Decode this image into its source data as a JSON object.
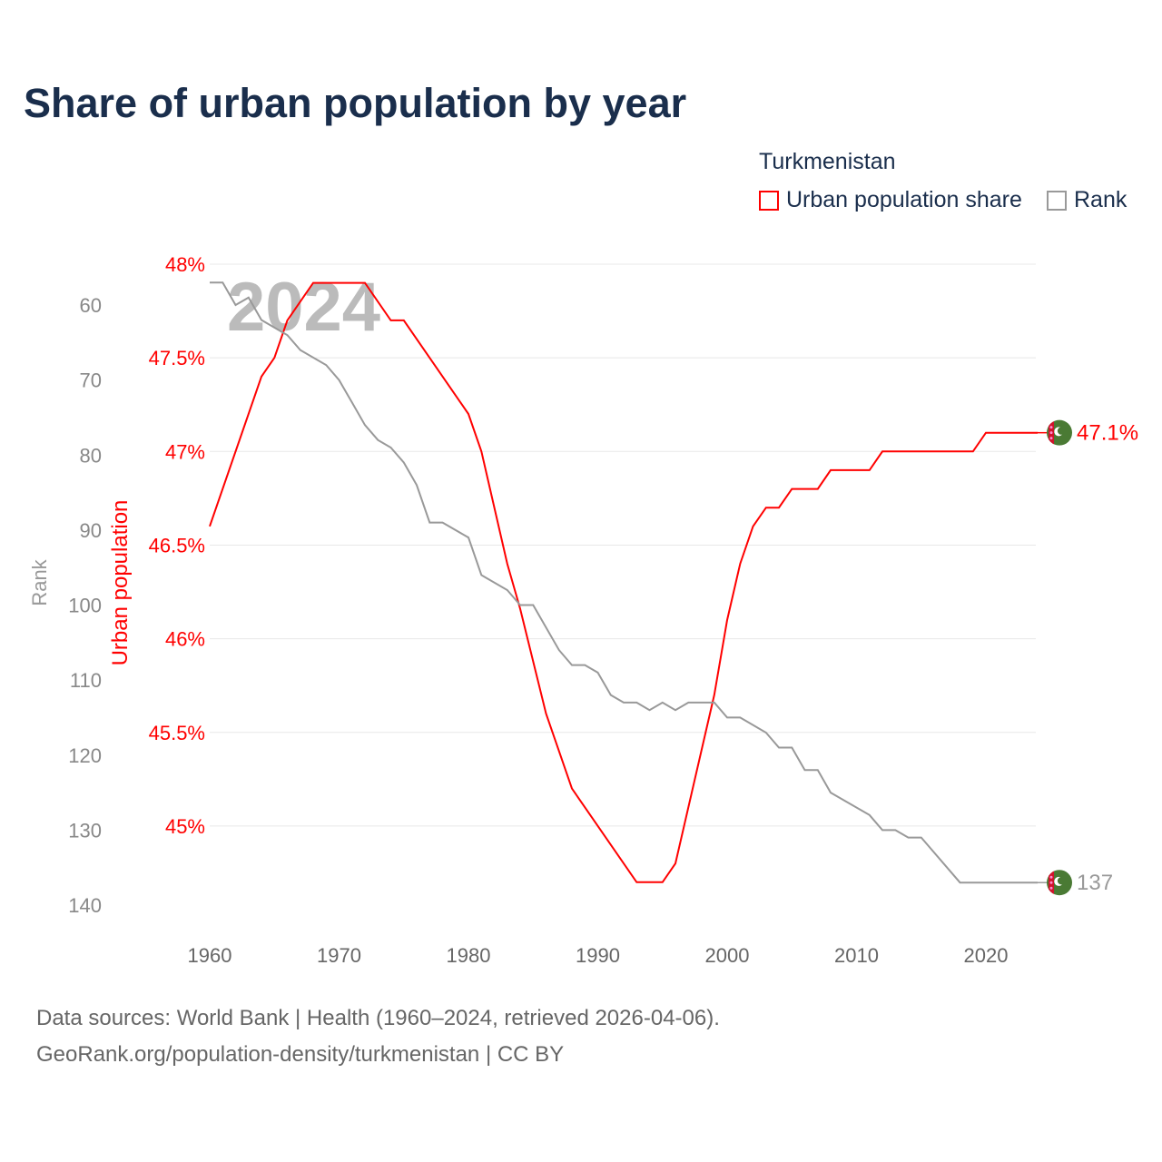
{
  "title": "Share of urban population by year",
  "legend": {
    "country": "Turkmenistan",
    "items": [
      {
        "label": "Urban population share",
        "color": "#ff0000"
      },
      {
        "label": "Rank",
        "color": "#999999"
      }
    ]
  },
  "footer": {
    "line1": "Data sources: World Bank | Health (1960–2024, retrieved 2026-04-06).",
    "line2": "GeoRank.org/population-density/turkmenistan | CC BY"
  },
  "chart_data": {
    "type": "line",
    "watermark_year": "2024",
    "xlabel": "",
    "x_ticks": [
      "1960",
      "1970",
      "1980",
      "1990",
      "2000",
      "2010",
      "2020"
    ],
    "xlim": [
      1960,
      2024
    ],
    "y_left_label": "Rank",
    "y_left_ticks": [
      "60",
      "70",
      "80",
      "90",
      "100",
      "110",
      "120",
      "130",
      "140"
    ],
    "y_left_range": [
      60,
      140
    ],
    "y_left_inverted": true,
    "y_right_label": "Urban population",
    "y_right_ticks": [
      "48%",
      "47.5%",
      "47%",
      "46.5%",
      "46%",
      "45.5%",
      "45%"
    ],
    "y_right_range": [
      45,
      48
    ],
    "end_labels": {
      "urban": "47.1%",
      "rank": "137"
    },
    "series": [
      {
        "name": "Urban population share",
        "color": "#ff0000",
        "points": [
          [
            1960,
            46.6
          ],
          [
            1964,
            47.4
          ],
          [
            1965,
            47.5
          ],
          [
            1966,
            47.7
          ],
          [
            1968,
            47.9
          ],
          [
            1972,
            47.9
          ],
          [
            1974,
            47.7
          ],
          [
            1975,
            47.7
          ],
          [
            1980,
            47.2
          ],
          [
            1981,
            47.0
          ],
          [
            1983,
            46.4
          ],
          [
            1984,
            46.16
          ],
          [
            1986,
            45.6
          ],
          [
            1988,
            45.2
          ],
          [
            1993,
            44.7
          ],
          [
            1995,
            44.7
          ],
          [
            1996,
            44.8
          ],
          [
            1999,
            45.7
          ],
          [
            2000,
            46.1
          ],
          [
            2001,
            46.4
          ],
          [
            2002,
            46.6
          ],
          [
            2003,
            46.7
          ],
          [
            2004,
            46.7
          ],
          [
            2005,
            46.8
          ],
          [
            2007,
            46.8
          ],
          [
            2008,
            46.9
          ],
          [
            2011,
            46.9
          ],
          [
            2012,
            47.0
          ],
          [
            2019,
            47.0
          ],
          [
            2020,
            47.1
          ],
          [
            2024,
            47.1
          ]
        ]
      },
      {
        "name": "Rank",
        "color": "#999999",
        "points": [
          [
            1960,
            57
          ],
          [
            1961,
            57
          ],
          [
            1962,
            60
          ],
          [
            1963,
            59
          ],
          [
            1964,
            62
          ],
          [
            1966,
            64
          ],
          [
            1967,
            66
          ],
          [
            1969,
            68
          ],
          [
            1970,
            70
          ],
          [
            1971,
            73
          ],
          [
            1972,
            76
          ],
          [
            1973,
            78
          ],
          [
            1974,
            79
          ],
          [
            1975,
            81
          ],
          [
            1976,
            84
          ],
          [
            1977,
            89
          ],
          [
            1978,
            89
          ],
          [
            1980,
            91
          ],
          [
            1981,
            96
          ],
          [
            1983,
            98
          ],
          [
            1984,
            100
          ],
          [
            1985,
            100
          ],
          [
            1987,
            106
          ],
          [
            1988,
            108
          ],
          [
            1989,
            108
          ],
          [
            1990,
            109
          ],
          [
            1991,
            112
          ],
          [
            1992,
            113
          ],
          [
            1993,
            113
          ],
          [
            1994,
            114
          ],
          [
            1995,
            113
          ],
          [
            1996,
            114
          ],
          [
            1997,
            113
          ],
          [
            1999,
            113
          ],
          [
            2000,
            115
          ],
          [
            2001,
            115
          ],
          [
            2003,
            117
          ],
          [
            2004,
            119
          ],
          [
            2005,
            119
          ],
          [
            2006,
            122
          ],
          [
            2007,
            122
          ],
          [
            2008,
            125
          ],
          [
            2011,
            128
          ],
          [
            2012,
            130
          ],
          [
            2013,
            130
          ],
          [
            2014,
            131
          ],
          [
            2015,
            131
          ],
          [
            2018,
            137
          ],
          [
            2024,
            137
          ]
        ]
      }
    ]
  }
}
